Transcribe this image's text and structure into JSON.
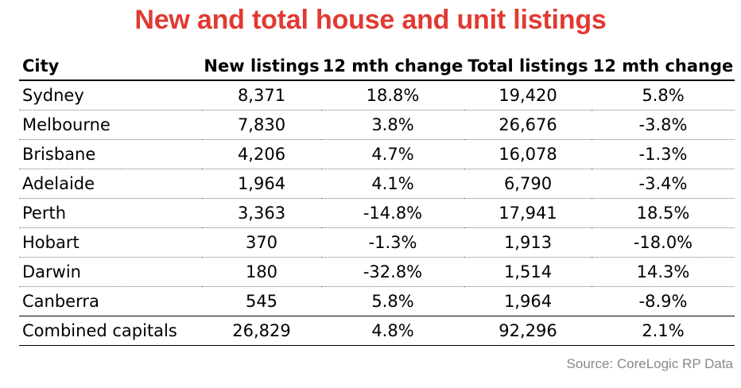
{
  "title": "New and total house and unit listings",
  "source": "Source: CoreLogic RP Data",
  "chart_data": {
    "type": "table",
    "title": "New and total house and unit listings",
    "columns": [
      "City",
      "New listings",
      "12 mth change",
      "Total listings",
      "12 mth change"
    ],
    "rows": [
      [
        "Sydney",
        "8,371",
        "18.8%",
        "19,420",
        "5.8%"
      ],
      [
        "Melbourne",
        "7,830",
        "3.8%",
        "26,676",
        "-3.8%"
      ],
      [
        "Brisbane",
        "4,206",
        "4.7%",
        "16,078",
        "-1.3%"
      ],
      [
        "Adelaide",
        "1,964",
        "4.1%",
        "6,790",
        "-3.4%"
      ],
      [
        "Perth",
        "3,363",
        "-14.8%",
        "17,941",
        "18.5%"
      ],
      [
        "Hobart",
        "370",
        "-1.3%",
        "1,913",
        "-18.0%"
      ],
      [
        "Darwin",
        "180",
        "-32.8%",
        "1,514",
        "14.3%"
      ],
      [
        "Canberra",
        "545",
        "5.8%",
        "1,964",
        "-8.9%"
      ],
      [
        "Combined capitals",
        "26,829",
        "4.8%",
        "92,296",
        "2.1%"
      ]
    ],
    "source": "Source: CoreLogic RP Data"
  },
  "colors": {
    "title": "#e03a33",
    "source": "#888888"
  }
}
